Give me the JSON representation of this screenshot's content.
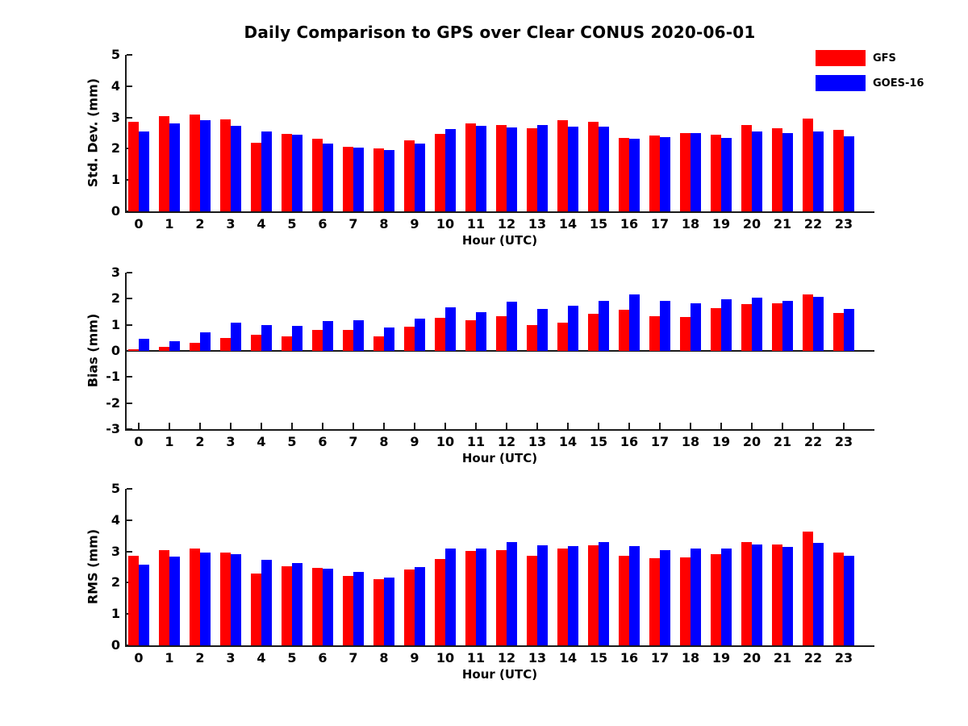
{
  "figure": {
    "title": "Daily Comparison to GPS over Clear CONUS 2020-06-01",
    "background_color": "#ffffff",
    "text_color": "#000000",
    "axis_color": "#1a1a1a"
  },
  "legend": {
    "position": "top-right",
    "items": [
      {
        "label": "GFS",
        "color": "#ff0000"
      },
      {
        "label": "GOES-16",
        "color": "#0000ff"
      }
    ]
  },
  "chart_data": [
    {
      "type": "bar",
      "panel": "std-dev",
      "ylabel": "Std. Dev. (mm)",
      "xlabel": "Hour (UTC)",
      "ylim": [
        0,
        5
      ],
      "yticks": [
        0,
        1,
        2,
        3,
        4,
        5
      ],
      "baseline": 0,
      "grid": false,
      "categories": [
        "0",
        "1",
        "2",
        "3",
        "4",
        "5",
        "6",
        "7",
        "8",
        "9",
        "10",
        "11",
        "12",
        "13",
        "14",
        "15",
        "16",
        "17",
        "18",
        "19",
        "20",
        "21",
        "22",
        "23"
      ],
      "series": [
        {
          "name": "GFS",
          "color": "#ff0000",
          "values": [
            2.85,
            3.05,
            3.1,
            2.95,
            2.2,
            2.47,
            2.33,
            2.07,
            2.02,
            2.27,
            2.47,
            2.8,
            2.75,
            2.66,
            2.9,
            2.85,
            2.35,
            2.43,
            2.49,
            2.45,
            2.77,
            2.66,
            2.96,
            2.61
          ]
        },
        {
          "name": "GOES-16",
          "color": "#0000ff",
          "values": [
            2.55,
            2.82,
            2.92,
            2.73,
            2.55,
            2.44,
            2.17,
            2.03,
            1.96,
            2.17,
            2.62,
            2.72,
            2.69,
            2.76,
            2.71,
            2.7,
            2.33,
            2.37,
            2.49,
            2.35,
            2.55,
            2.51,
            2.55,
            2.39
          ]
        }
      ]
    },
    {
      "type": "bar",
      "panel": "bias",
      "ylabel": "Bias (mm)",
      "xlabel": "Hour (UTC)",
      "ylim": [
        -3,
        3
      ],
      "yticks": [
        -3,
        -2,
        -1,
        0,
        1,
        2,
        3
      ],
      "baseline": 0,
      "grid": false,
      "categories": [
        "0",
        "1",
        "2",
        "3",
        "4",
        "5",
        "6",
        "7",
        "8",
        "9",
        "10",
        "11",
        "12",
        "13",
        "14",
        "15",
        "16",
        "17",
        "18",
        "19",
        "20",
        "21",
        "22",
        "23"
      ],
      "series": [
        {
          "name": "GFS",
          "color": "#ff0000",
          "values": [
            0.07,
            0.14,
            0.3,
            0.51,
            0.61,
            0.55,
            0.79,
            0.79,
            0.55,
            0.92,
            1.27,
            1.16,
            1.34,
            0.99,
            1.09,
            1.43,
            1.57,
            1.34,
            1.31,
            1.64,
            1.8,
            1.82,
            2.17,
            1.46
          ]
        },
        {
          "name": "GOES-16",
          "color": "#0000ff",
          "values": [
            0.47,
            0.38,
            0.7,
            1.08,
            1.0,
            0.97,
            1.13,
            1.17,
            0.89,
            1.23,
            1.68,
            1.48,
            1.9,
            1.62,
            1.73,
            1.93,
            2.17,
            1.93,
            1.83,
            1.99,
            2.03,
            1.92,
            2.08,
            1.61
          ]
        }
      ]
    },
    {
      "type": "bar",
      "panel": "rms",
      "ylabel": "RMS (mm)",
      "xlabel": "Hour (UTC)",
      "ylim": [
        0,
        5
      ],
      "yticks": [
        0,
        1,
        2,
        3,
        4,
        5
      ],
      "baseline": 0,
      "grid": false,
      "categories": [
        "0",
        "1",
        "2",
        "3",
        "4",
        "5",
        "6",
        "7",
        "8",
        "9",
        "10",
        "11",
        "12",
        "13",
        "14",
        "15",
        "16",
        "17",
        "18",
        "19",
        "20",
        "21",
        "22",
        "23"
      ],
      "series": [
        {
          "name": "GFS",
          "color": "#ff0000",
          "values": [
            2.85,
            3.04,
            3.09,
            2.96,
            2.29,
            2.52,
            2.47,
            2.22,
            2.11,
            2.41,
            2.77,
            3.01,
            3.04,
            2.87,
            3.1,
            3.19,
            2.85,
            2.78,
            2.8,
            2.92,
            3.29,
            3.21,
            3.64,
            2.97
          ]
        },
        {
          "name": "GOES-16",
          "color": "#0000ff",
          "values": [
            2.57,
            2.84,
            2.96,
            2.91,
            2.74,
            2.63,
            2.44,
            2.35,
            2.16,
            2.5,
            3.09,
            3.09,
            3.3,
            3.2,
            3.18,
            3.3,
            3.16,
            3.04,
            3.09,
            3.09,
            3.21,
            3.14,
            3.27,
            2.86
          ]
        }
      ]
    }
  ]
}
